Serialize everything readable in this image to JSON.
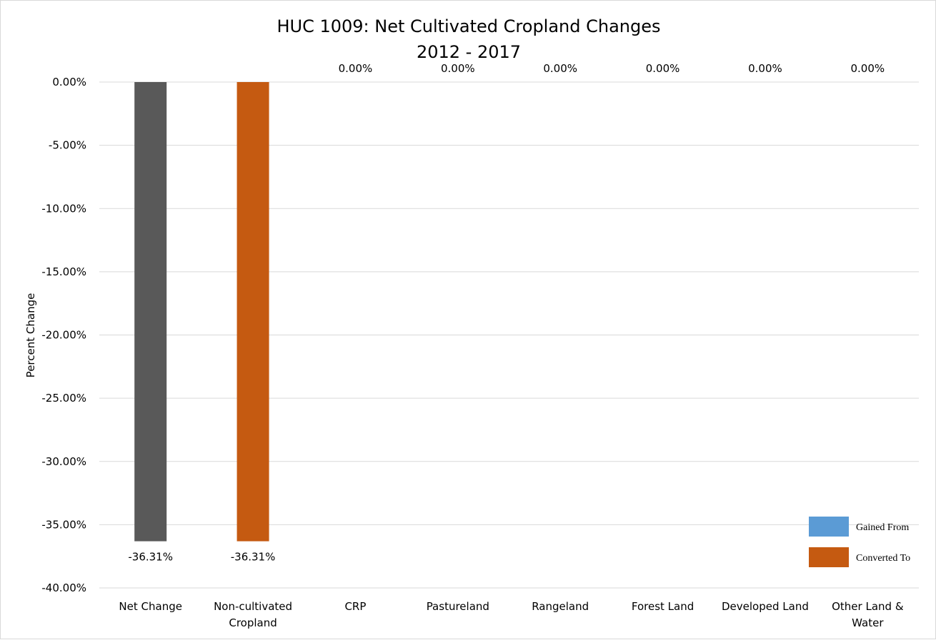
{
  "chart_data": {
    "type": "bar",
    "title": "HUC 1009: Net Cultivated Cropland Changes",
    "subtitle": "2012 - 2017",
    "ylabel": "Percent Change",
    "xlabel": "",
    "ylim": [
      -40,
      0
    ],
    "yticks": [
      "0.00%",
      "-5.00%",
      "-10.00%",
      "-15.00%",
      "-20.00%",
      "-25.00%",
      "-30.00%",
      "-35.00%",
      "-40.00%"
    ],
    "ytick_values": [
      0,
      -5,
      -10,
      -15,
      -20,
      -25,
      -30,
      -35,
      -40
    ],
    "categories": [
      [
        "Net Change"
      ],
      [
        "Non-cultivated",
        "Cropland"
      ],
      [
        "CRP"
      ],
      [
        "Pastureland"
      ],
      [
        "Rangeland"
      ],
      [
        "Forest Land"
      ],
      [
        "Developed Land"
      ],
      [
        "Other Land &",
        "Water"
      ]
    ],
    "values": [
      -36.31,
      -36.31,
      0,
      0,
      0,
      0,
      0,
      0
    ],
    "data_labels": [
      "-36.31%",
      "-36.31%",
      "0.00%",
      "0.00%",
      "0.00%",
      "0.00%",
      "0.00%",
      "0.00%"
    ],
    "bar_colors": [
      "#595959",
      "#c55a11",
      "#c55a11",
      "#c55a11",
      "#c55a11",
      "#c55a11",
      "#c55a11",
      "#c55a11"
    ],
    "grid": true,
    "legend": {
      "position": "bottom-right",
      "items": [
        {
          "label": "Gained From",
          "color": "#5b9bd5"
        },
        {
          "label": "Converted To",
          "color": "#c55a11"
        }
      ]
    }
  }
}
